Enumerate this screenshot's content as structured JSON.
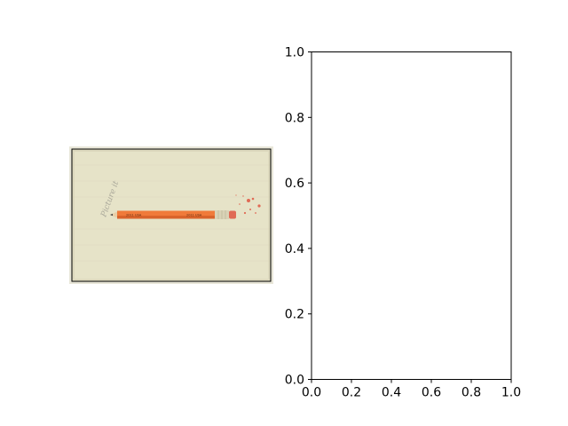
{
  "chart_data": [
    {
      "type": "image",
      "panel": "left",
      "image": {
        "subject": "orange-pencil-on-lined-paper",
        "handwriting": "Picture it",
        "pencil_text_left": "2011 USA",
        "pencil_text_right": "2011 USA"
      },
      "colors": {
        "paper": "#e6e3c8",
        "pencil": "#f07a3a",
        "eraser": "#e06a55",
        "ferrule": "#d9d2b6",
        "lead": "#4a4a4a"
      }
    },
    {
      "type": "scatter",
      "panel": "right",
      "xlim": [
        0.0,
        1.0
      ],
      "ylim": [
        0.0,
        1.0
      ],
      "x_ticks": [
        "0.0",
        "0.2",
        "0.4",
        "0.6",
        "0.8",
        "1.0"
      ],
      "y_ticks": [
        "0.0",
        "0.2",
        "0.4",
        "0.6",
        "0.8",
        "1.0"
      ],
      "series": [],
      "grid": false,
      "title": "",
      "xlabel": "",
      "ylabel": ""
    }
  ]
}
